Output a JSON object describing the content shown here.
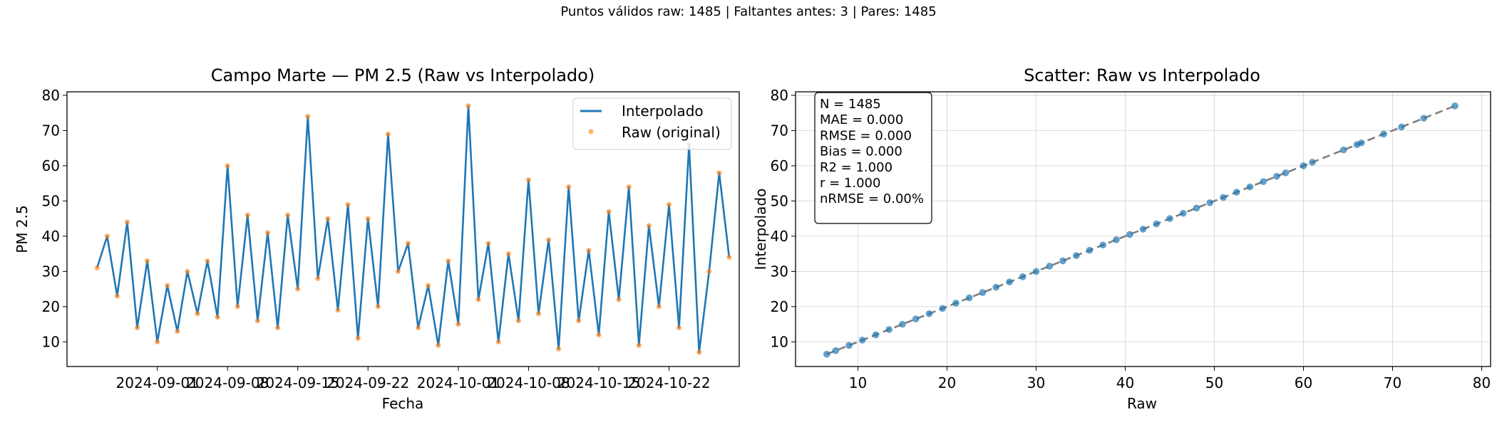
{
  "suptitle": "Puntos válidos raw: 1485 | Faltantes antes: 3 | Pares: 1485",
  "chart_data": [
    {
      "type": "line",
      "title": "Campo Marte — PM 2.5 (Raw vs Interpolado)",
      "xlabel": "Fecha",
      "ylabel": "PM 2.5",
      "x_range": [
        "2024-08-23",
        "2024-10-29"
      ],
      "xticks": [
        "2024-09-01",
        "2024-09-08",
        "2024-09-15",
        "2024-09-22",
        "2024-10-01",
        "2024-10-08",
        "2024-10-15",
        "2024-10-22"
      ],
      "ylim": [
        3,
        81
      ],
      "yticks": [
        10,
        20,
        30,
        40,
        50,
        60,
        70,
        80
      ],
      "grid": false,
      "legend": "top-right",
      "colors": {
        "interpolado": "#1f77b4",
        "raw": "#ff7f0e"
      },
      "series": [
        {
          "name": "Interpolado",
          "style": "line",
          "points": [
            [
              "2024-08-26",
              31
            ],
            [
              "2024-08-27",
              40
            ],
            [
              "2024-08-28",
              23
            ],
            [
              "2024-08-29",
              44
            ],
            [
              "2024-08-30",
              14
            ],
            [
              "2024-08-31",
              33
            ],
            [
              "2024-09-01",
              10
            ],
            [
              "2024-09-02",
              26
            ],
            [
              "2024-09-03",
              13
            ],
            [
              "2024-09-04",
              30
            ],
            [
              "2024-09-05",
              18
            ],
            [
              "2024-09-06",
              33
            ],
            [
              "2024-09-07",
              17
            ],
            [
              "2024-09-08",
              60
            ],
            [
              "2024-09-09",
              20
            ],
            [
              "2024-09-10",
              46
            ],
            [
              "2024-09-11",
              16
            ],
            [
              "2024-09-12",
              41
            ],
            [
              "2024-09-13",
              14
            ],
            [
              "2024-09-14",
              46
            ],
            [
              "2024-09-15",
              25
            ],
            [
              "2024-09-16",
              74
            ],
            [
              "2024-09-17",
              28
            ],
            [
              "2024-09-18",
              45
            ],
            [
              "2024-09-19",
              19
            ],
            [
              "2024-09-20",
              49
            ],
            [
              "2024-09-21",
              11
            ],
            [
              "2024-09-22",
              45
            ],
            [
              "2024-09-23",
              20
            ],
            [
              "2024-09-24",
              69
            ],
            [
              "2024-09-25",
              30
            ],
            [
              "2024-09-26",
              38
            ],
            [
              "2024-09-27",
              14
            ],
            [
              "2024-09-28",
              26
            ],
            [
              "2024-09-29",
              9
            ],
            [
              "2024-09-30",
              33
            ],
            [
              "2024-10-01",
              15
            ],
            [
              "2024-10-02",
              77
            ],
            [
              "2024-10-03",
              22
            ],
            [
              "2024-10-04",
              38
            ],
            [
              "2024-10-05",
              10
            ],
            [
              "2024-10-06",
              35
            ],
            [
              "2024-10-07",
              16
            ],
            [
              "2024-10-08",
              56
            ],
            [
              "2024-10-09",
              18
            ],
            [
              "2024-10-10",
              39
            ],
            [
              "2024-10-11",
              8
            ],
            [
              "2024-10-12",
              54
            ],
            [
              "2024-10-13",
              16
            ],
            [
              "2024-10-14",
              36
            ],
            [
              "2024-10-15",
              12
            ],
            [
              "2024-10-16",
              47
            ],
            [
              "2024-10-17",
              22
            ],
            [
              "2024-10-18",
              54
            ],
            [
              "2024-10-19",
              9
            ],
            [
              "2024-10-20",
              43
            ],
            [
              "2024-10-21",
              20
            ],
            [
              "2024-10-22",
              49
            ],
            [
              "2024-10-23",
              14
            ],
            [
              "2024-10-24",
              66
            ],
            [
              "2024-10-25",
              7
            ],
            [
              "2024-10-26",
              30
            ],
            [
              "2024-10-27",
              58
            ],
            [
              "2024-10-28",
              34
            ]
          ]
        },
        {
          "name": "Raw (original)",
          "style": "markers",
          "points": "same as Interpolado"
        }
      ]
    },
    {
      "type": "scatter",
      "title": "Scatter: Raw vs Interpolado",
      "xlabel": "Raw",
      "ylabel": "Interpolado",
      "xlim": [
        3,
        81
      ],
      "ylim": [
        3,
        81
      ],
      "xticks": [
        10,
        20,
        30,
        40,
        50,
        60,
        70,
        80
      ],
      "yticks": [
        10,
        20,
        30,
        40,
        50,
        60,
        70,
        80
      ],
      "grid": true,
      "colors": {
        "points": "#1f77b4",
        "reference_line": "#7f7f7f"
      },
      "reference_line": {
        "style": "dashed",
        "from": [
          6.5,
          6.5
        ],
        "to": [
          77,
          77
        ]
      },
      "points": [
        [
          6.5,
          6.5
        ],
        [
          7.5,
          7.5
        ],
        [
          9,
          9
        ],
        [
          10.5,
          10.5
        ],
        [
          12,
          12
        ],
        [
          13.5,
          13.5
        ],
        [
          15,
          15
        ],
        [
          16.5,
          16.5
        ],
        [
          18,
          18
        ],
        [
          19.5,
          19.5
        ],
        [
          21,
          21
        ],
        [
          22.5,
          22.5
        ],
        [
          24,
          24
        ],
        [
          25.5,
          25.5
        ],
        [
          27,
          27
        ],
        [
          28.5,
          28.5
        ],
        [
          30,
          30
        ],
        [
          31.5,
          31.5
        ],
        [
          33,
          33
        ],
        [
          34.5,
          34.5
        ],
        [
          36,
          36
        ],
        [
          37.5,
          37.5
        ],
        [
          39,
          39
        ],
        [
          40.5,
          40.5
        ],
        [
          42,
          42
        ],
        [
          43.5,
          43.5
        ],
        [
          45,
          45
        ],
        [
          46.5,
          46.5
        ],
        [
          48,
          48
        ],
        [
          49.5,
          49.5
        ],
        [
          51,
          51
        ],
        [
          52.5,
          52.5
        ],
        [
          54,
          54
        ],
        [
          55.5,
          55.5
        ],
        [
          57,
          57
        ],
        [
          58,
          58
        ],
        [
          60,
          60
        ],
        [
          61,
          61
        ],
        [
          64.5,
          64.5
        ],
        [
          66,
          66
        ],
        [
          66.5,
          66.5
        ],
        [
          69,
          69
        ],
        [
          71,
          71
        ],
        [
          73.5,
          73.5
        ],
        [
          77,
          77
        ]
      ],
      "stats_box": [
        "N = 1485",
        "MAE = 0.000",
        "RMSE = 0.000",
        "Bias = 0.000",
        "R2 = 1.000",
        "r = 1.000",
        "nRMSE = 0.00%"
      ]
    }
  ]
}
